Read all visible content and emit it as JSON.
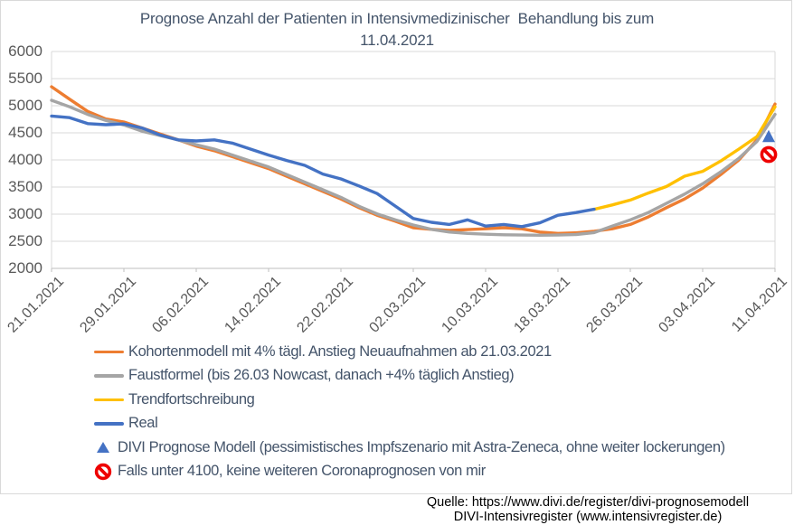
{
  "footer": {
    "line1": "Quelle: https://www.divi.de/register/divi-prognosemodell",
    "line2": "DIVI-Intensivregister (www.intensivregister.de)"
  },
  "chart_data": {
    "type": "line",
    "title": "Prognose Anzahl der Patienten in Intensivmedizinischer  Behandlung bis zum\n11.04.2021",
    "xlabel": "",
    "ylabel": "",
    "ylim": [
      2000,
      6000
    ],
    "y_ticks": [
      2000,
      2500,
      3000,
      3500,
      4000,
      4500,
      5000,
      5500,
      6000
    ],
    "x_tick_labels": [
      "21.01.2021",
      "29.01.2021",
      "06.02.2021",
      "14.02.2021",
      "22.02.2021",
      "02.03.2021",
      "10.03.2021",
      "18.03.2021",
      "26.03.2021",
      "03.04.2021",
      "11.04.2021"
    ],
    "tick_step_days": 8,
    "day_max": 80,
    "grid": "horizontal-on",
    "legend_position": "bottom-left",
    "colors": {
      "orange": "#ED7D31",
      "gray": "#A5A5A5",
      "yellow": "#FFC000",
      "blue": "#4472C4",
      "red": "#EE0000",
      "grid": "#D9D9D9",
      "axis": "#BFBFBF",
      "title_text": "#44546A",
      "axis_text": "#595959",
      "footer_text": "#000000"
    },
    "series": [
      {
        "id": "kohortenmodell",
        "name": "Kohortenmodell mit 4% tägl. Anstieg Neuaufnahmen ab 21.03.2021",
        "color": "#ED7D31",
        "start_day": 0,
        "step_days": 2,
        "values": [
          5350,
          5120,
          4895,
          4755,
          4700,
          4590,
          4480,
          4370,
          4255,
          4170,
          4060,
          3950,
          3840,
          3700,
          3560,
          3420,
          3280,
          3120,
          2980,
          2870,
          2750,
          2720,
          2700,
          2715,
          2730,
          2750,
          2730,
          2670,
          2645,
          2655,
          2685,
          2730,
          2810,
          2950,
          3120,
          3280,
          3480,
          3730,
          4000,
          4370,
          5030
        ]
      },
      {
        "id": "faustformel",
        "name": "Faustformel (bis 26.03 Nowcast, danach +4% täglich Anstieg)",
        "color": "#A5A5A5",
        "start_day": 0,
        "step_days": 2,
        "values": [
          5100,
          4980,
          4840,
          4730,
          4645,
          4530,
          4450,
          4370,
          4280,
          4200,
          4090,
          3980,
          3870,
          3730,
          3590,
          3450,
          3310,
          3145,
          3005,
          2895,
          2800,
          2720,
          2670,
          2645,
          2630,
          2620,
          2615,
          2612,
          2615,
          2625,
          2660,
          2780,
          2895,
          3030,
          3200,
          3370,
          3560,
          3780,
          4030,
          4340,
          4840
        ]
      },
      {
        "id": "trendfortschreibung",
        "name": "Trendfortschreibung",
        "color": "#FFC000",
        "start_day": 60,
        "step_days": 2,
        "values": [
          3090,
          3170,
          3260,
          3390,
          3510,
          3700,
          3790,
          3980,
          4200,
          4430,
          4980
        ]
      },
      {
        "id": "real",
        "name": "Real",
        "color": "#4472C4",
        "start_day": 0,
        "step_days": 2,
        "values": [
          4810,
          4780,
          4670,
          4650,
          4665,
          4590,
          4460,
          4370,
          4350,
          4370,
          4310,
          4200,
          4090,
          3990,
          3900,
          3740,
          3650,
          3520,
          3380,
          3150,
          2920,
          2850,
          2810,
          2895,
          2780,
          2810,
          2770,
          2840,
          2980,
          3030,
          3090
        ]
      }
    ],
    "point_markers": [
      {
        "id": "divi-prognose",
        "label": "DIVI Prognose Modell (pessimistisches Impfszenario mit Astra-Zeneca, ohne weiter lockerungen)",
        "shape": "triangle",
        "color": "#4472C4",
        "day": 79.3,
        "value": 4430
      },
      {
        "id": "abbruch-marke",
        "label": "Falls unter 4100, keine weiteren Coronaprognosen von mir",
        "shape": "no-entry",
        "color": "#EE0000",
        "day": 79.3,
        "value": 4100
      }
    ]
  }
}
